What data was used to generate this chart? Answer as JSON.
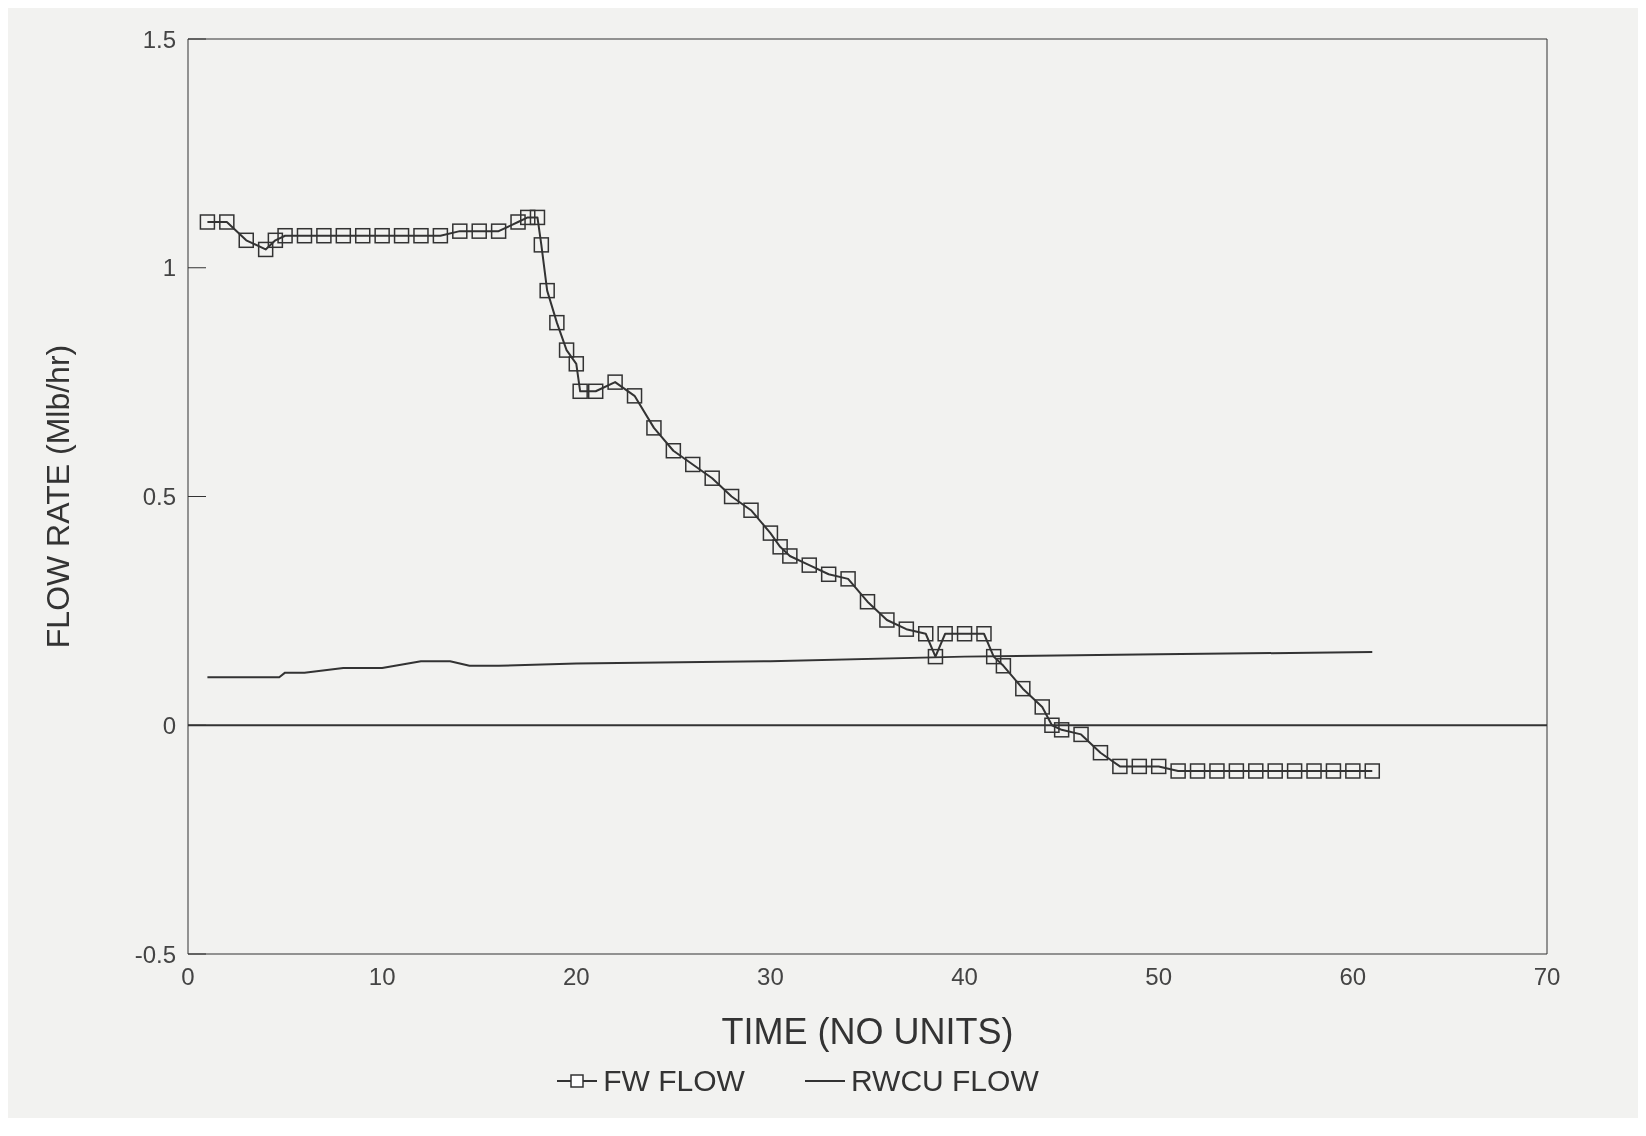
{
  "chart_data": {
    "type": "line",
    "xlabel": "TIME (NO UNITS)",
    "ylabel": "FLOW RATE (Mlb/hr)",
    "xlim": [
      0,
      70
    ],
    "xticks": [
      0,
      10,
      20,
      30,
      40,
      50,
      60,
      70
    ],
    "ylim": [
      -0.5,
      1.5
    ],
    "yticks": [
      -0.5,
      0,
      0.5,
      1,
      1.5
    ],
    "legend": "bottom",
    "line_style": "solid",
    "ref_lines": [
      {
        "axis": "y",
        "value": 0,
        "label": null,
        "color": "#333333"
      }
    ],
    "series": [
      {
        "name": "FW FLOW",
        "color": "#333333",
        "marker": "square",
        "x": [
          1,
          2,
          3,
          4,
          4.5,
          5,
          6,
          7,
          8,
          9,
          10,
          11,
          12,
          13,
          14,
          15,
          16,
          17,
          17.5,
          18,
          18.2,
          18.5,
          19,
          19.5,
          20,
          20.2,
          21,
          22,
          23,
          24,
          25,
          26,
          27,
          28,
          29,
          30,
          30.5,
          31,
          32,
          33,
          34,
          35,
          36,
          37,
          38,
          38.5,
          39,
          40,
          41,
          41.5,
          42,
          43,
          44,
          44.5,
          45,
          46,
          47,
          48,
          49,
          50,
          51,
          52,
          53,
          54,
          55,
          56,
          57,
          58,
          59,
          60,
          61
        ],
        "values": [
          1.1,
          1.1,
          1.06,
          1.04,
          1.06,
          1.07,
          1.07,
          1.07,
          1.07,
          1.07,
          1.07,
          1.07,
          1.07,
          1.07,
          1.08,
          1.08,
          1.08,
          1.1,
          1.11,
          1.11,
          1.05,
          0.95,
          0.88,
          0.82,
          0.79,
          0.73,
          0.73,
          0.75,
          0.72,
          0.65,
          0.6,
          0.57,
          0.54,
          0.5,
          0.47,
          0.42,
          0.39,
          0.37,
          0.35,
          0.33,
          0.32,
          0.27,
          0.23,
          0.21,
          0.2,
          0.15,
          0.2,
          0.2,
          0.2,
          0.15,
          0.13,
          0.08,
          0.04,
          0.0,
          -0.01,
          -0.02,
          -0.06,
          -0.09,
          -0.09,
          -0.09,
          -0.1,
          -0.1,
          -0.1,
          -0.1,
          -0.1,
          -0.1,
          -0.1,
          -0.1,
          -0.1,
          -0.1,
          -0.1
        ]
      },
      {
        "name": "RWCU FLOW",
        "color": "#333333",
        "marker": "none",
        "x": [
          1,
          4.7,
          5,
          6,
          8,
          10,
          12,
          13.5,
          14.5,
          16,
          20,
          30,
          40,
          50,
          61
        ],
        "values": [
          0.105,
          0.105,
          0.115,
          0.115,
          0.125,
          0.125,
          0.14,
          0.14,
          0.13,
          0.13,
          0.135,
          0.14,
          0.15,
          0.155,
          0.16
        ]
      }
    ]
  }
}
